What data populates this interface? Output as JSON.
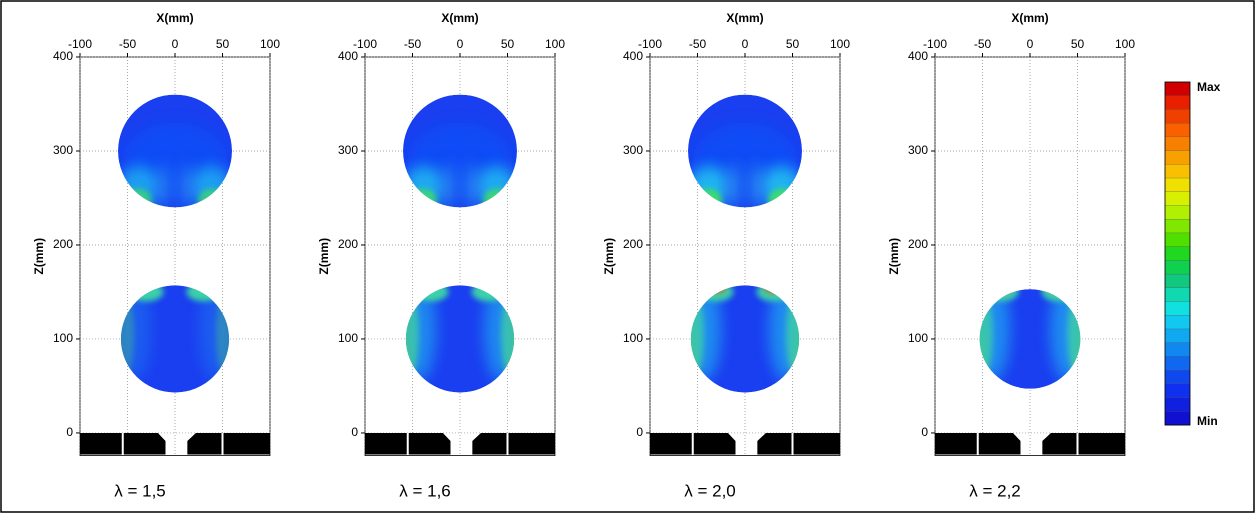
{
  "chart_data": [
    {
      "type": "field",
      "xlabel": "X(mm)",
      "ylabel": "Z(mm)",
      "caption": "λ = 1,5",
      "xlim": [
        -100,
        100
      ],
      "xticks": [
        -100,
        -50,
        0,
        50,
        100
      ],
      "ylim": [
        -24,
        400
      ],
      "yticks": [
        0,
        100,
        200,
        300,
        400
      ],
      "grid": true
    },
    {
      "type": "field",
      "xlabel": "X(mm)",
      "ylabel": "Z(mm)",
      "caption": "λ = 1,6",
      "xlim": [
        -100,
        100
      ],
      "xticks": [
        -100,
        -50,
        0,
        50,
        100
      ],
      "ylim": [
        -24,
        400
      ],
      "yticks": [
        0,
        100,
        200,
        300,
        400
      ],
      "grid": true
    },
    {
      "type": "field",
      "xlabel": "X(mm)",
      "ylabel": "Z(mm)",
      "caption": "λ = 2,0",
      "xlim": [
        -100,
        100
      ],
      "xticks": [
        -100,
        -50,
        0,
        50,
        100
      ],
      "ylim": [
        -24,
        400
      ],
      "yticks": [
        0,
        100,
        200,
        300,
        400
      ],
      "grid": true
    },
    {
      "type": "field",
      "xlabel": "X(mm)",
      "ylabel": "Z(mm)",
      "caption": "λ = 2,2",
      "xlim": [
        -100,
        100
      ],
      "xticks": [
        -100,
        -50,
        0,
        50,
        100
      ],
      "ylim": [
        -24,
        400
      ],
      "yticks": [
        0,
        100,
        200,
        300,
        400
      ],
      "grid": true
    }
  ],
  "colorbar": {
    "max_label": "Max",
    "min_label": "Min"
  }
}
